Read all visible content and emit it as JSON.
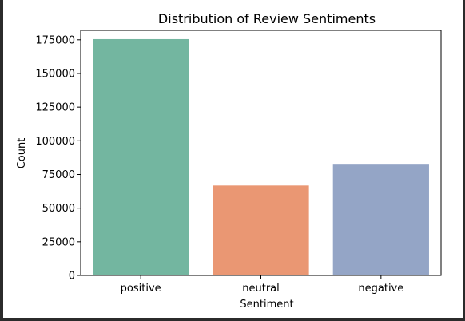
{
  "chart_data": {
    "type": "bar",
    "title": "Distribution of Review Sentiments",
    "xlabel": "Sentiment",
    "ylabel": "Count",
    "categories": [
      "positive",
      "neutral",
      "negative"
    ],
    "values": [
      175500,
      66800,
      82300
    ],
    "ylim": [
      0,
      182000
    ],
    "yticks": [
      0,
      25000,
      50000,
      75000,
      100000,
      125000,
      150000,
      175000
    ],
    "ytick_labels": [
      "0",
      "25000",
      "50000",
      "75000",
      "100000",
      "125000",
      "150000",
      "175000"
    ],
    "colors": [
      "#73b6a0",
      "#ea9773",
      "#94a5c6"
    ],
    "grid": false,
    "legend": "none"
  }
}
